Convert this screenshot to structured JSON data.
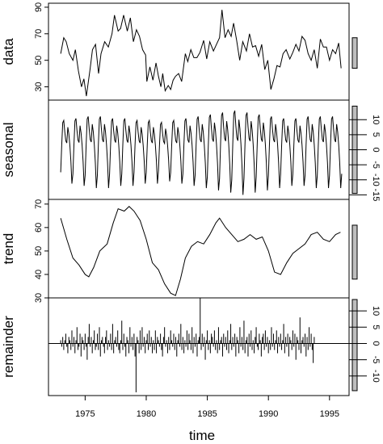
{
  "chart_data": {
    "type": "line",
    "layout": "stacked-panels",
    "xlabel": "time",
    "x_ticks": [
      1975,
      1980,
      1985,
      1990,
      1995
    ],
    "x_range": [
      1972.0,
      1996.6
    ],
    "x_start": 1973.0,
    "x_end": 1996.0,
    "panels": [
      {
        "name": "data",
        "label": "data",
        "axis_side": "left",
        "ylim": [
          20,
          93
        ],
        "y_ticks": [
          30,
          50,
          70,
          90
        ],
        "bar_range": [
          44,
          67
        ],
        "series": [
          {
            "x": 1973.0,
            "y": 55
          },
          {
            "x": 1973.25,
            "y": 67
          },
          {
            "x": 1973.45,
            "y": 64
          },
          {
            "x": 1973.7,
            "y": 55
          },
          {
            "x": 1974.0,
            "y": 50
          },
          {
            "x": 1974.2,
            "y": 58
          },
          {
            "x": 1974.45,
            "y": 42
          },
          {
            "x": 1974.7,
            "y": 30
          },
          {
            "x": 1974.9,
            "y": 36
          },
          {
            "x": 1975.1,
            "y": 23
          },
          {
            "x": 1975.4,
            "y": 43
          },
          {
            "x": 1975.6,
            "y": 58
          },
          {
            "x": 1975.85,
            "y": 62
          },
          {
            "x": 1976.1,
            "y": 40
          },
          {
            "x": 1976.3,
            "y": 55
          },
          {
            "x": 1976.6,
            "y": 64
          },
          {
            "x": 1976.9,
            "y": 60
          },
          {
            "x": 1977.2,
            "y": 70
          },
          {
            "x": 1977.4,
            "y": 84
          },
          {
            "x": 1977.7,
            "y": 72
          },
          {
            "x": 1977.9,
            "y": 74
          },
          {
            "x": 1978.15,
            "y": 84
          },
          {
            "x": 1978.45,
            "y": 72
          },
          {
            "x": 1978.7,
            "y": 82
          },
          {
            "x": 1978.95,
            "y": 64
          },
          {
            "x": 1979.2,
            "y": 73
          },
          {
            "x": 1979.45,
            "y": 68
          },
          {
            "x": 1979.7,
            "y": 58
          },
          {
            "x": 1979.95,
            "y": 54
          },
          {
            "x": 1980.05,
            "y": 34
          },
          {
            "x": 1980.3,
            "y": 45
          },
          {
            "x": 1980.55,
            "y": 35
          },
          {
            "x": 1980.8,
            "y": 48
          },
          {
            "x": 1981.0,
            "y": 38
          },
          {
            "x": 1981.2,
            "y": 30
          },
          {
            "x": 1981.35,
            "y": 40
          },
          {
            "x": 1981.55,
            "y": 27
          },
          {
            "x": 1981.8,
            "y": 31
          },
          {
            "x": 1982.0,
            "y": 28
          },
          {
            "x": 1982.2,
            "y": 35
          },
          {
            "x": 1982.4,
            "y": 38
          },
          {
            "x": 1982.65,
            "y": 40
          },
          {
            "x": 1982.9,
            "y": 34
          },
          {
            "x": 1983.2,
            "y": 55
          },
          {
            "x": 1983.4,
            "y": 49
          },
          {
            "x": 1983.65,
            "y": 58
          },
          {
            "x": 1983.9,
            "y": 52
          },
          {
            "x": 1984.15,
            "y": 52
          },
          {
            "x": 1984.4,
            "y": 56
          },
          {
            "x": 1984.7,
            "y": 65
          },
          {
            "x": 1984.95,
            "y": 51
          },
          {
            "x": 1985.2,
            "y": 64
          },
          {
            "x": 1985.5,
            "y": 57
          },
          {
            "x": 1985.75,
            "y": 62
          },
          {
            "x": 1986.0,
            "y": 67
          },
          {
            "x": 1986.2,
            "y": 88
          },
          {
            "x": 1986.45,
            "y": 67
          },
          {
            "x": 1986.7,
            "y": 73
          },
          {
            "x": 1986.95,
            "y": 68
          },
          {
            "x": 1987.15,
            "y": 78
          },
          {
            "x": 1987.4,
            "y": 65
          },
          {
            "x": 1987.65,
            "y": 50
          },
          {
            "x": 1987.9,
            "y": 64
          },
          {
            "x": 1988.2,
            "y": 57
          },
          {
            "x": 1988.45,
            "y": 70
          },
          {
            "x": 1988.7,
            "y": 60
          },
          {
            "x": 1988.95,
            "y": 61
          },
          {
            "x": 1989.2,
            "y": 53
          },
          {
            "x": 1989.45,
            "y": 62
          },
          {
            "x": 1989.7,
            "y": 43
          },
          {
            "x": 1989.95,
            "y": 50
          },
          {
            "x": 1990.2,
            "y": 28
          },
          {
            "x": 1990.45,
            "y": 36
          },
          {
            "x": 1990.7,
            "y": 46
          },
          {
            "x": 1990.95,
            "y": 45
          },
          {
            "x": 1991.2,
            "y": 55
          },
          {
            "x": 1991.45,
            "y": 58
          },
          {
            "x": 1991.75,
            "y": 51
          },
          {
            "x": 1992.0,
            "y": 56
          },
          {
            "x": 1992.25,
            "y": 62
          },
          {
            "x": 1992.5,
            "y": 57
          },
          {
            "x": 1992.75,
            "y": 68
          },
          {
            "x": 1993.0,
            "y": 65
          },
          {
            "x": 1993.25,
            "y": 55
          },
          {
            "x": 1993.5,
            "y": 50
          },
          {
            "x": 1993.75,
            "y": 58
          },
          {
            "x": 1994.0,
            "y": 44
          },
          {
            "x": 1994.25,
            "y": 66
          },
          {
            "x": 1994.5,
            "y": 60
          },
          {
            "x": 1994.75,
            "y": 60
          },
          {
            "x": 1995.0,
            "y": 50
          },
          {
            "x": 1995.25,
            "y": 58
          },
          {
            "x": 1995.5,
            "y": 55
          },
          {
            "x": 1995.75,
            "y": 63
          },
          {
            "x": 1995.95,
            "y": 44
          }
        ]
      },
      {
        "name": "seasonal",
        "label": "seasonal",
        "axis_side": "right",
        "ylim": [
          -16.5,
          16.5
        ],
        "y_ticks": [
          -15,
          -10,
          -5,
          0,
          5,
          10
        ],
        "y_tick_labels": [
          "-15",
          "-10",
          "-5",
          "0",
          "5",
          "10"
        ],
        "bar_range": [
          -14.5,
          14.5
        ],
        "season_shape": [
          -10,
          2,
          12,
          13,
          8,
          4,
          3,
          10,
          7,
          2,
          -5,
          -15
        ],
        "amplitude_scale_by_year": [
          0.75,
          0.8,
          0.85,
          0.85,
          0.8,
          0.8,
          0.75,
          0.75,
          0.7,
          0.75,
          0.8,
          0.85,
          0.9,
          0.95,
          1.0,
          0.95,
          0.9,
          0.85,
          0.8,
          0.8,
          0.85,
          0.85,
          0.85,
          0.8
        ]
      },
      {
        "name": "trend",
        "label": "trend",
        "axis_side": "left",
        "ylim": [
          30,
          72
        ],
        "y_ticks": [
          30,
          40,
          50,
          60,
          70
        ],
        "bar_range": [
          38,
          61
        ],
        "series": [
          {
            "x": 1973.0,
            "y": 64
          },
          {
            "x": 1973.5,
            "y": 55
          },
          {
            "x": 1974.0,
            "y": 47
          },
          {
            "x": 1974.5,
            "y": 44
          },
          {
            "x": 1975.0,
            "y": 40
          },
          {
            "x": 1975.3,
            "y": 39
          },
          {
            "x": 1975.7,
            "y": 43
          },
          {
            "x": 1976.2,
            "y": 50
          },
          {
            "x": 1976.8,
            "y": 53
          },
          {
            "x": 1977.3,
            "y": 62
          },
          {
            "x": 1977.7,
            "y": 68
          },
          {
            "x": 1978.2,
            "y": 67
          },
          {
            "x": 1978.6,
            "y": 69
          },
          {
            "x": 1979.0,
            "y": 67
          },
          {
            "x": 1979.5,
            "y": 63
          },
          {
            "x": 1980.0,
            "y": 55
          },
          {
            "x": 1980.5,
            "y": 45
          },
          {
            "x": 1981.0,
            "y": 42
          },
          {
            "x": 1981.5,
            "y": 36
          },
          {
            "x": 1982.0,
            "y": 32
          },
          {
            "x": 1982.4,
            "y": 31
          },
          {
            "x": 1982.8,
            "y": 38
          },
          {
            "x": 1983.2,
            "y": 47
          },
          {
            "x": 1983.7,
            "y": 52
          },
          {
            "x": 1984.2,
            "y": 54
          },
          {
            "x": 1984.7,
            "y": 53
          },
          {
            "x": 1985.2,
            "y": 57
          },
          {
            "x": 1985.7,
            "y": 62
          },
          {
            "x": 1986.0,
            "y": 64
          },
          {
            "x": 1986.5,
            "y": 60
          },
          {
            "x": 1987.0,
            "y": 57
          },
          {
            "x": 1987.5,
            "y": 54
          },
          {
            "x": 1988.0,
            "y": 55
          },
          {
            "x": 1988.5,
            "y": 57
          },
          {
            "x": 1989.0,
            "y": 55
          },
          {
            "x": 1989.5,
            "y": 56
          },
          {
            "x": 1990.0,
            "y": 50
          },
          {
            "x": 1990.5,
            "y": 41
          },
          {
            "x": 1991.0,
            "y": 40
          },
          {
            "x": 1991.5,
            "y": 45
          },
          {
            "x": 1992.0,
            "y": 49
          },
          {
            "x": 1992.5,
            "y": 51
          },
          {
            "x": 1993.0,
            "y": 53
          },
          {
            "x": 1993.5,
            "y": 57
          },
          {
            "x": 1994.0,
            "y": 58
          },
          {
            "x": 1994.5,
            "y": 55
          },
          {
            "x": 1995.0,
            "y": 54
          },
          {
            "x": 1995.5,
            "y": 57
          },
          {
            "x": 1995.9,
            "y": 58
          }
        ]
      },
      {
        "name": "remainder",
        "label": "remainder",
        "axis_side": "right",
        "ylim": [
          -16,
          14
        ],
        "y_ticks": [
          -10,
          -5,
          0,
          5,
          10
        ],
        "y_tick_labels": [
          "-10",
          "-5",
          "0",
          "5",
          "10"
        ],
        "bar_range": [
          -14.5,
          13.5
        ],
        "zero_line": true,
        "values_start": 1973.0,
        "values_step": 0.08333,
        "values": [
          1,
          -1,
          2,
          -2,
          1,
          3,
          -1,
          -3,
          2,
          1,
          -2,
          4,
          -1,
          2,
          -3,
          1,
          5,
          -2,
          -1,
          3,
          -4,
          2,
          1,
          -2,
          3,
          -1,
          -5,
          2,
          6,
          -1,
          2,
          -3,
          1,
          4,
          -2,
          -1,
          3,
          -2,
          5,
          -4,
          1,
          2,
          -1,
          -3,
          2,
          4,
          -2,
          1,
          -1,
          3,
          -2,
          6,
          -3,
          1,
          2,
          -1,
          4,
          -2,
          -3,
          1,
          7,
          -2,
          3,
          -1,
          -4,
          2,
          1,
          -3,
          5,
          -1,
          2,
          -2,
          3,
          -4,
          -15,
          2,
          1,
          -3,
          4,
          -2,
          5,
          -1,
          2,
          -3,
          1,
          3,
          -2,
          4,
          -1,
          2,
          -3,
          1,
          -2,
          4,
          -3,
          2,
          1,
          -1,
          3,
          -2,
          -4,
          2,
          5,
          -1,
          1,
          -3,
          2,
          -2,
          4,
          1,
          -1,
          3,
          -2,
          2,
          -4,
          1,
          3,
          -1,
          6,
          -2,
          2,
          -3,
          1,
          -1,
          4,
          -2,
          3,
          1,
          -2,
          5,
          -3,
          2,
          -1,
          3,
          -4,
          1,
          2,
          14,
          -2,
          3,
          -1,
          2,
          -5,
          1,
          4,
          -2,
          1,
          -3,
          3,
          2,
          -1,
          4,
          -2,
          1,
          -3,
          5,
          -2,
          1,
          2,
          -4,
          3,
          -1,
          2,
          -2,
          4,
          -3,
          1,
          6,
          -2,
          2,
          -1,
          3,
          -4,
          2,
          1,
          -3,
          5,
          -1,
          2,
          -2,
          7,
          -3,
          1,
          2,
          -4,
          3,
          -1,
          4,
          -2,
          1,
          -3,
          2,
          5,
          -1,
          -2,
          3,
          1,
          -4,
          2,
          3,
          -2,
          4,
          -1,
          2,
          -3,
          1,
          -2,
          5,
          -1,
          3,
          -2,
          1,
          4,
          -3,
          2,
          -1,
          3,
          -2,
          1,
          6,
          -3,
          2,
          -1,
          3,
          -4,
          2,
          1,
          -2,
          4,
          -1,
          3,
          -5,
          2,
          1,
          -2,
          8,
          -3,
          1,
          2,
          -1,
          3,
          -4,
          2,
          -2,
          5,
          -1,
          3,
          -2,
          -6,
          2
        ]
      }
    ]
  }
}
